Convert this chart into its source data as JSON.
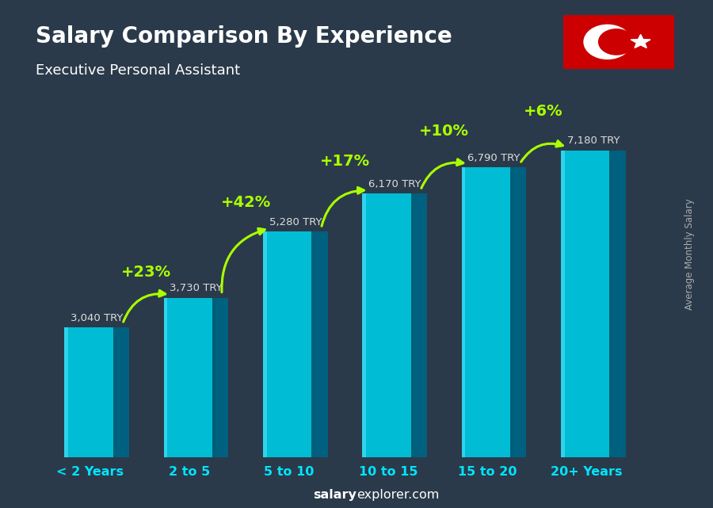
{
  "title": "Salary Comparison By Experience",
  "subtitle": "Executive Personal Assistant",
  "categories": [
    "< 2 Years",
    "2 to 5",
    "5 to 10",
    "10 to 15",
    "15 to 20",
    "20+ Years"
  ],
  "values": [
    3040,
    3730,
    5280,
    6170,
    6790,
    7180
  ],
  "value_labels": [
    "3,040 TRY",
    "3,730 TRY",
    "5,280 TRY",
    "6,170 TRY",
    "6,790 TRY",
    "7,180 TRY"
  ],
  "pct_changes": [
    "+23%",
    "+42%",
    "+17%",
    "+10%",
    "+6%"
  ],
  "bar_front_color": "#00bcd4",
  "bar_side_color": "#006080",
  "bar_highlight": "#55e8ff",
  "bg_color": "#2a3a4a",
  "title_color": "#ffffff",
  "subtitle_color": "#ffffff",
  "value_label_color": "#dddddd",
  "pct_color": "#aaff00",
  "xlabel_color": "#00e5ff",
  "footer_bold": "salary",
  "footer_normal": "explorer.com",
  "ylabel_text": "Average Monthly Salary",
  "ylim": [
    0,
    8800
  ],
  "bar_width": 0.52,
  "bar_depth": 0.13
}
